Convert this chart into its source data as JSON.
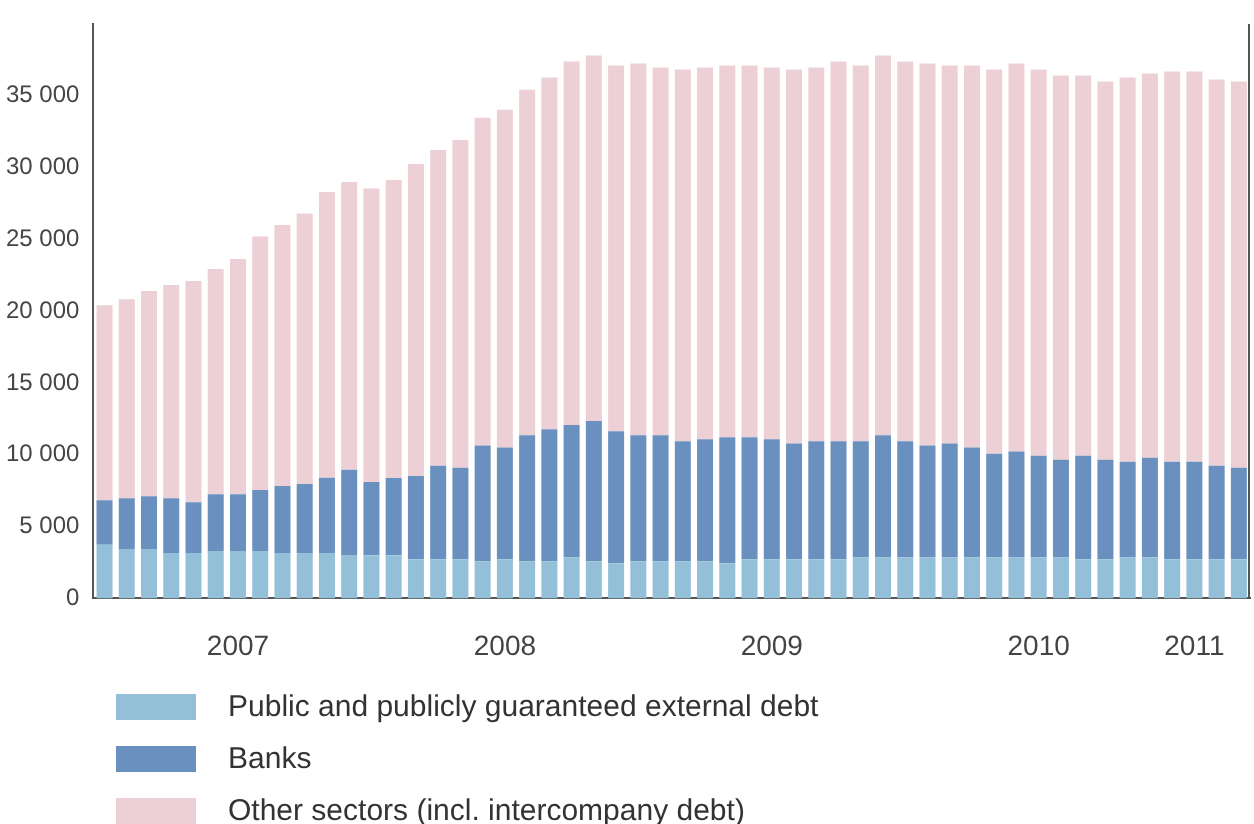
{
  "chart_data": {
    "type": "bar",
    "stacked": true,
    "legend": "bottom",
    "grid": false,
    "categories": [
      null,
      null,
      null,
      null,
      null,
      null,
      "2007",
      null,
      null,
      null,
      null,
      null,
      null,
      null,
      null,
      null,
      null,
      null,
      "2008",
      null,
      null,
      null,
      null,
      null,
      null,
      null,
      null,
      null,
      null,
      null,
      "2009",
      null,
      null,
      null,
      null,
      null,
      null,
      null,
      null,
      null,
      null,
      null,
      "2010",
      null,
      null,
      null,
      null,
      null,
      null,
      "2011",
      null,
      null
    ],
    "ylim": [
      0,
      40000
    ],
    "yticks": [
      0,
      {
        "value": 5000,
        "label": "5 000"
      },
      {
        "value": 10000,
        "label": "10 000"
      },
      {
        "value": 15000,
        "label": "15 000"
      },
      {
        "value": 20000,
        "label": "20 000"
      },
      {
        "value": 25000,
        "label": "25 000"
      },
      {
        "value": 30000,
        "label": "30 000"
      },
      {
        "value": 35000,
        "label": "35 000"
      }
    ],
    "series": [
      {
        "name": "Public and publicly guaranteed external debt",
        "color": "#93c0d8",
        "values": [
          3730,
          3440,
          3440,
          3160,
          3160,
          3300,
          3300,
          3300,
          3160,
          3160,
          3160,
          3020,
          3010,
          3010,
          2730,
          2730,
          2730,
          2590,
          2730,
          2590,
          2590,
          2870,
          2590,
          2450,
          2590,
          2590,
          2590,
          2590,
          2450,
          2730,
          2730,
          2730,
          2730,
          2730,
          2870,
          2870,
          2870,
          2870,
          2870,
          2870,
          2870,
          2870,
          2870,
          2870,
          2730,
          2730,
          2870,
          2870,
          2730,
          2730,
          2730,
          2730
        ]
      },
      {
        "name": "Banks",
        "color": "#6a90bf",
        "values": [
          3110,
          3540,
          3680,
          3820,
          3540,
          3960,
          3960,
          4250,
          4670,
          4810,
          5240,
          5940,
          5090,
          5380,
          5800,
          6510,
          6370,
          8060,
          7780,
          8770,
          9190,
          9200,
          9760,
          9190,
          8770,
          8770,
          8350,
          8490,
          8770,
          8490,
          8350,
          8060,
          8210,
          8210,
          8070,
          8490,
          8070,
          7780,
          7920,
          7640,
          7210,
          7360,
          7070,
          6790,
          7210,
          6930,
          6650,
          6930,
          6790,
          6790,
          6510,
          6370
        ]
      },
      {
        "name": "Other sectors (incl. intercompany debt)",
        "color": "#ecd0d5",
        "values": [
          13570,
          13850,
          14280,
          14840,
          15400,
          15680,
          16380,
          17650,
          18170,
          18830,
          19900,
          20040,
          20450,
          20740,
          21720,
          21990,
          22830,
          22820,
          23520,
          24070,
          24490,
          25320,
          25460,
          25470,
          25890,
          25610,
          25890,
          25890,
          25890,
          25890,
          25890,
          26040,
          26030,
          26450,
          26170,
          26450,
          26450,
          26600,
          26320,
          26600,
          26750,
          27020,
          26890,
          26750,
          26470,
          26330,
          26750,
          26750,
          27170,
          27170,
          26890,
          26890
        ]
      }
    ]
  }
}
